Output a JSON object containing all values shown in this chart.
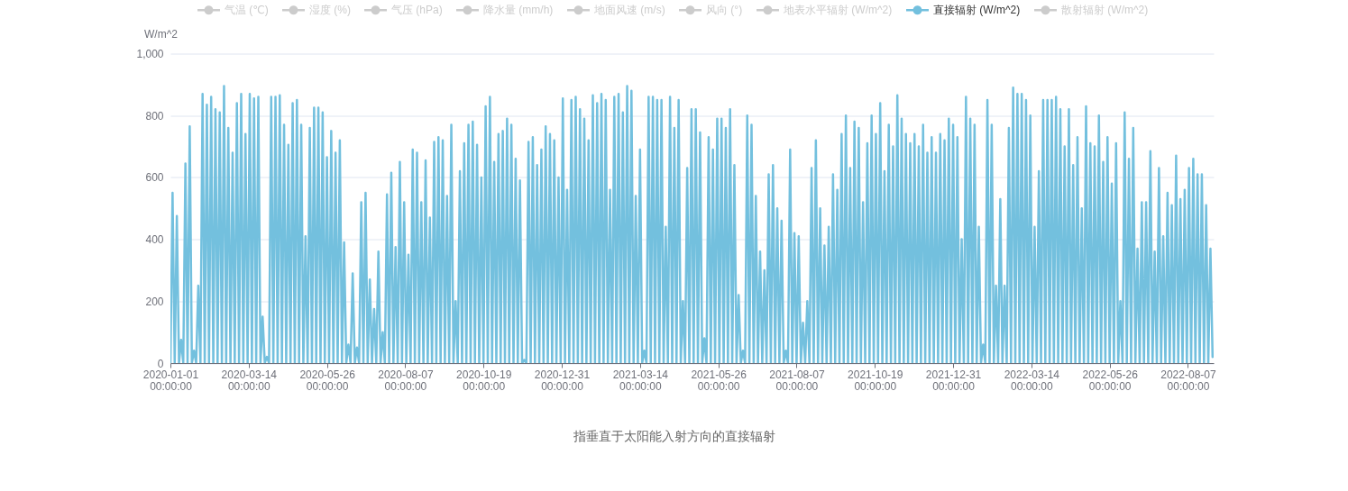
{
  "chart_data": {
    "type": "line",
    "ylabel": "W/m^2",
    "annotations": [
      "指垂直于太阳能入射方向的直接辐射"
    ],
    "legend": "top",
    "grid": "y",
    "xlim": [
      "2020-01-01",
      "2022-08-31"
    ],
    "xticks": [
      {
        "value": "2020-01-01",
        "label": "2020-01-01\n00:00:00"
      },
      {
        "value": "2020-03-14",
        "label": "2020-03-14\n00:00:00"
      },
      {
        "value": "2020-05-26",
        "label": "2020-05-26\n00:00:00"
      },
      {
        "value": "2020-08-07",
        "label": "2020-08-07\n00:00:00"
      },
      {
        "value": "2020-10-19",
        "label": "2020-10-19\n00:00:00"
      },
      {
        "value": "2020-12-31",
        "label": "2020-12-31\n00:00:00"
      },
      {
        "value": "2021-03-14",
        "label": "2021-03-14\n00:00:00"
      },
      {
        "value": "2021-05-26",
        "label": "2021-05-26\n00:00:00"
      },
      {
        "value": "2021-08-07",
        "label": "2021-08-07\n00:00:00"
      },
      {
        "value": "2021-10-19",
        "label": "2021-10-19\n00:00:00"
      },
      {
        "value": "2021-12-31",
        "label": "2021-12-31\n00:00:00"
      },
      {
        "value": "2022-03-14",
        "label": "2022-03-14\n00:00:00"
      },
      {
        "value": "2022-05-26",
        "label": "2022-05-26\n00:00:00"
      },
      {
        "value": "2022-08-07",
        "label": "2022-08-07\n00:00:00"
      }
    ],
    "ylim": [
      0,
      1000
    ],
    "yticks": [
      0,
      200,
      400,
      600,
      800,
      {
        "value": 1000,
        "label": "1,000"
      }
    ],
    "series": [
      {
        "name": "气温 (℃)",
        "color": "#cccccc"
      },
      {
        "name": "湿度 (%)",
        "color": "#cccccc"
      },
      {
        "name": "气压 (hPa)",
        "color": "#cccccc"
      },
      {
        "name": "降水量 (mm/h)",
        "color": "#cccccc"
      },
      {
        "name": "地面风速 (m/s)",
        "color": "#cccccc"
      },
      {
        "name": "风向 (°)",
        "color": "#cccccc"
      },
      {
        "name": "地表水平辐射 (W/m^2)",
        "color": "#cccccc"
      },
      {
        "name": "直接辐射 (W/m^2)",
        "color": "#73c0de",
        "x": [
          "2020-01-01",
          "2020-01-03",
          "2020-01-05",
          "2020-01-07",
          "2020-01-09",
          "2020-01-11",
          "2020-01-13",
          "2020-01-15",
          "2020-01-17",
          "2020-01-19",
          "2020-01-21",
          "2020-01-23",
          "2020-01-25",
          "2020-01-27",
          "2020-01-29",
          "2020-01-31",
          "2020-02-02",
          "2020-02-04",
          "2020-02-06",
          "2020-02-08",
          "2020-02-10",
          "2020-02-12",
          "2020-02-14",
          "2020-02-16",
          "2020-02-18",
          "2020-02-20",
          "2020-02-22",
          "2020-02-24",
          "2020-02-26",
          "2020-02-28",
          "2020-03-01",
          "2020-03-03",
          "2020-03-05",
          "2020-03-07",
          "2020-03-09",
          "2020-03-11",
          "2020-03-13",
          "2020-03-15",
          "2020-03-17",
          "2020-03-19",
          "2020-03-21",
          "2020-03-23",
          "2020-03-25",
          "2020-03-27",
          "2020-03-29",
          "2020-03-31",
          "2020-04-02",
          "2020-04-04",
          "2020-04-06",
          "2020-04-08",
          "2020-04-10",
          "2020-04-12",
          "2020-04-14",
          "2020-04-16",
          "2020-04-18",
          "2020-04-20",
          "2020-04-22",
          "2020-04-24",
          "2020-04-26",
          "2020-04-28",
          "2020-04-30",
          "2020-05-02",
          "2020-05-04",
          "2020-05-06",
          "2020-05-08",
          "2020-05-10",
          "2020-05-12",
          "2020-05-14",
          "2020-05-16",
          "2020-05-18",
          "2020-05-20",
          "2020-05-22",
          "2020-05-24",
          "2020-05-26",
          "2020-05-28",
          "2020-05-30",
          "2020-06-01",
          "2020-06-03",
          "2020-06-05",
          "2020-06-07",
          "2020-06-09",
          "2020-06-11",
          "2020-06-13",
          "2020-06-15",
          "2020-06-17",
          "2020-06-19",
          "2020-06-21",
          "2020-06-23",
          "2020-06-25",
          "2020-06-27",
          "2020-06-29",
          "2020-07-01",
          "2020-07-03",
          "2020-07-05",
          "2020-07-07",
          "2020-07-09",
          "2020-07-11",
          "2020-07-13",
          "2020-07-15",
          "2020-07-17",
          "2020-07-19",
          "2020-07-21",
          "2020-07-23",
          "2020-07-25",
          "2020-07-27",
          "2020-07-29",
          "2020-07-31",
          "2020-08-02",
          "2020-08-04",
          "2020-08-06",
          "2020-08-08",
          "2020-08-10",
          "2020-08-12",
          "2020-08-14",
          "2020-08-16",
          "2020-08-18",
          "2020-08-20",
          "2020-08-22",
          "2020-08-24",
          "2020-08-26",
          "2020-08-28",
          "2020-08-30",
          "2020-09-01",
          "2020-09-03",
          "2020-09-05",
          "2020-09-07",
          "2020-09-09",
          "2020-09-11",
          "2020-09-13",
          "2020-09-15",
          "2020-09-17",
          "2020-09-19",
          "2020-09-21",
          "2020-09-23",
          "2020-09-25",
          "2020-09-27",
          "2020-09-29",
          "2020-10-01",
          "2020-10-03",
          "2020-10-05",
          "2020-10-07",
          "2020-10-09",
          "2020-10-11",
          "2020-10-13",
          "2020-10-15",
          "2020-10-17",
          "2020-10-19",
          "2020-10-21",
          "2020-10-23",
          "2020-10-25",
          "2020-10-27",
          "2020-10-29",
          "2020-10-31",
          "2020-11-02",
          "2020-11-04",
          "2020-11-06",
          "2020-11-08",
          "2020-11-10",
          "2020-11-12",
          "2020-11-14",
          "2020-11-16",
          "2020-11-18",
          "2020-11-20",
          "2020-11-22",
          "2020-11-24",
          "2020-11-26",
          "2020-11-28",
          "2020-11-30",
          "2020-12-02",
          "2020-12-04",
          "2020-12-06",
          "2020-12-08",
          "2020-12-10",
          "2020-12-12",
          "2020-12-14",
          "2020-12-16",
          "2020-12-18",
          "2020-12-20",
          "2020-12-22",
          "2020-12-24",
          "2020-12-26",
          "2020-12-28",
          "2020-12-30",
          "2021-01-01",
          "2021-01-03",
          "2021-01-05",
          "2021-01-07",
          "2021-01-09",
          "2021-01-11",
          "2021-01-13",
          "2021-01-15",
          "2021-01-17",
          "2021-01-19",
          "2021-01-21",
          "2021-01-23",
          "2021-01-25",
          "2021-01-27",
          "2021-01-29",
          "2021-01-31",
          "2021-02-02",
          "2021-02-04",
          "2021-02-06",
          "2021-02-08",
          "2021-02-10",
          "2021-02-12",
          "2021-02-14",
          "2021-02-16",
          "2021-02-18",
          "2021-02-20",
          "2021-02-22",
          "2021-02-24",
          "2021-02-26",
          "2021-02-28",
          "2021-03-02",
          "2021-03-04",
          "2021-03-06",
          "2021-03-08",
          "2021-03-10",
          "2021-03-12",
          "2021-03-14",
          "2021-03-16",
          "2021-03-18",
          "2021-03-20",
          "2021-03-22",
          "2021-03-24",
          "2021-03-26",
          "2021-03-28",
          "2021-03-30",
          "2021-04-01",
          "2021-04-03",
          "2021-04-05",
          "2021-04-07",
          "2021-04-09",
          "2021-04-11",
          "2021-04-13",
          "2021-04-15",
          "2021-04-17",
          "2021-04-19",
          "2021-04-21",
          "2021-04-23",
          "2021-04-25",
          "2021-04-27",
          "2021-04-29",
          "2021-05-01",
          "2021-05-03",
          "2021-05-05",
          "2021-05-07",
          "2021-05-09",
          "2021-05-11",
          "2021-05-13",
          "2021-05-15",
          "2021-05-17",
          "2021-05-19",
          "2021-05-21",
          "2021-05-23",
          "2021-05-25",
          "2021-05-27",
          "2021-05-29",
          "2021-05-31",
          "2021-06-02",
          "2021-06-04",
          "2021-06-06",
          "2021-06-08",
          "2021-06-10",
          "2021-06-12",
          "2021-06-14",
          "2021-06-16",
          "2021-06-18",
          "2021-06-20",
          "2021-06-22",
          "2021-06-24",
          "2021-06-26",
          "2021-06-28",
          "2021-06-30",
          "2021-07-02",
          "2021-07-04",
          "2021-07-06",
          "2021-07-08",
          "2021-07-10",
          "2021-07-12",
          "2021-07-14",
          "2021-07-16",
          "2021-07-18",
          "2021-07-20",
          "2021-07-22",
          "2021-07-24",
          "2021-07-26",
          "2021-07-28",
          "2021-07-30",
          "2021-08-01",
          "2021-08-03",
          "2021-08-05",
          "2021-08-07",
          "2021-08-09",
          "2021-08-11",
          "2021-08-13",
          "2021-08-15",
          "2021-08-17",
          "2021-08-19",
          "2021-08-21",
          "2021-08-23",
          "2021-08-25",
          "2021-08-27",
          "2021-08-29",
          "2021-08-31",
          "2021-09-02",
          "2021-09-04",
          "2021-09-06",
          "2021-09-08",
          "2021-09-10",
          "2021-09-12",
          "2021-09-14",
          "2021-09-16",
          "2021-09-18",
          "2021-09-20",
          "2021-09-22",
          "2021-09-24",
          "2021-09-26",
          "2021-09-28",
          "2021-09-30",
          "2021-10-02",
          "2021-10-04",
          "2021-10-06",
          "2021-10-08",
          "2021-10-10",
          "2021-10-12",
          "2021-10-14",
          "2021-10-16",
          "2021-10-18",
          "2021-10-20",
          "2021-10-22",
          "2021-10-24",
          "2021-10-26",
          "2021-10-28",
          "2021-10-30",
          "2021-11-01",
          "2021-11-03",
          "2021-11-05",
          "2021-11-07",
          "2021-11-09",
          "2021-11-11",
          "2021-11-13",
          "2021-11-15",
          "2021-11-17",
          "2021-11-19",
          "2021-11-21",
          "2021-11-23",
          "2021-11-25",
          "2021-11-27",
          "2021-11-29",
          "2021-12-01",
          "2021-12-03",
          "2021-12-05",
          "2021-12-07",
          "2021-12-09",
          "2021-12-11",
          "2021-12-13",
          "2021-12-15",
          "2021-12-17",
          "2021-12-19",
          "2021-12-21",
          "2021-12-23",
          "2021-12-25",
          "2021-12-27",
          "2021-12-29",
          "2021-12-31",
          "2022-01-02",
          "2022-01-04",
          "2022-01-06",
          "2022-01-08",
          "2022-01-10",
          "2022-01-12",
          "2022-01-14",
          "2022-01-16",
          "2022-01-18",
          "2022-01-20",
          "2022-01-22",
          "2022-01-24",
          "2022-01-26",
          "2022-01-28",
          "2022-01-30",
          "2022-02-01",
          "2022-02-03",
          "2022-02-05",
          "2022-02-07",
          "2022-02-09",
          "2022-02-11",
          "2022-02-13",
          "2022-02-15",
          "2022-02-17",
          "2022-02-19",
          "2022-02-21",
          "2022-02-23",
          "2022-02-25",
          "2022-02-27",
          "2022-03-01",
          "2022-03-03",
          "2022-03-05",
          "2022-03-07",
          "2022-03-09",
          "2022-03-11",
          "2022-03-13",
          "2022-03-15",
          "2022-03-17",
          "2022-03-19",
          "2022-03-21",
          "2022-03-23",
          "2022-03-25",
          "2022-03-27",
          "2022-03-29",
          "2022-03-31",
          "2022-04-02",
          "2022-04-04",
          "2022-04-06",
          "2022-04-08",
          "2022-04-10",
          "2022-04-12",
          "2022-04-14",
          "2022-04-16",
          "2022-04-18",
          "2022-04-20",
          "2022-04-22",
          "2022-04-24",
          "2022-04-26",
          "2022-04-28",
          "2022-04-30",
          "2022-05-02",
          "2022-05-04",
          "2022-05-06",
          "2022-05-08",
          "2022-05-10",
          "2022-05-12",
          "2022-05-14",
          "2022-05-16",
          "2022-05-18",
          "2022-05-20",
          "2022-05-22",
          "2022-05-24",
          "2022-05-26",
          "2022-05-28",
          "2022-05-30",
          "2022-06-01",
          "2022-06-03",
          "2022-06-05",
          "2022-06-07",
          "2022-06-09",
          "2022-06-11",
          "2022-06-13",
          "2022-06-15",
          "2022-06-17",
          "2022-06-19",
          "2022-06-21",
          "2022-06-23",
          "2022-06-25",
          "2022-06-27",
          "2022-06-29",
          "2022-07-01",
          "2022-07-03",
          "2022-07-05",
          "2022-07-07",
          "2022-07-09",
          "2022-07-11",
          "2022-07-13",
          "2022-07-15",
          "2022-07-17",
          "2022-07-19",
          "2022-07-21",
          "2022-07-23",
          "2022-07-25",
          "2022-07-27",
          "2022-07-29",
          "2022-07-31",
          "2022-08-02",
          "2022-08-04",
          "2022-08-06",
          "2022-08-08",
          "2022-08-10",
          "2022-08-12",
          "2022-08-14",
          "2022-08-16",
          "2022-08-18",
          "2022-08-20",
          "2022-08-22",
          "2022-08-24",
          "2022-08-26",
          "2022-08-28",
          "2022-08-30"
        ],
        "values": [
          0,
          550,
          0,
          475,
          0,
          75,
          0,
          645,
          0,
          765,
          0,
          40,
          0,
          250,
          0,
          870,
          0,
          835,
          0,
          860,
          0,
          820,
          0,
          810,
          0,
          895,
          0,
          760,
          0,
          680,
          0,
          840,
          0,
          870,
          0,
          740,
          0,
          870,
          0,
          855,
          0,
          860,
          0,
          150,
          0,
          20,
          0,
          860,
          0,
          860,
          0,
          865,
          0,
          770,
          0,
          705,
          0,
          840,
          0,
          850,
          0,
          770,
          0,
          410,
          0,
          760,
          0,
          825,
          0,
          825,
          0,
          810,
          0,
          665,
          0,
          750,
          0,
          680,
          0,
          720,
          0,
          390,
          0,
          60,
          0,
          290,
          0,
          50,
          0,
          520,
          0,
          550,
          0,
          270,
          0,
          175,
          0,
          360,
          0,
          100,
          0,
          545,
          0,
          615,
          0,
          375,
          0,
          650,
          0,
          520,
          0,
          350,
          0,
          690,
          0,
          680,
          0,
          520,
          0,
          655,
          0,
          470,
          0,
          715,
          0,
          730,
          0,
          720,
          0,
          540,
          0,
          770,
          0,
          200,
          0,
          620,
          0,
          710,
          0,
          770,
          0,
          780,
          0,
          705,
          0,
          600,
          0,
          830,
          0,
          860,
          0,
          650,
          0,
          740,
          0,
          750,
          0,
          790,
          0,
          770,
          0,
          660,
          0,
          590,
          0,
          10,
          0,
          715,
          0,
          730,
          0,
          640,
          0,
          690,
          0,
          765,
          0,
          740,
          0,
          720,
          0,
          600,
          0,
          855,
          0,
          560,
          0,
          850,
          0,
          860,
          0,
          820,
          0,
          790,
          0,
          720,
          0,
          865,
          0,
          840,
          0,
          870,
          0,
          850,
          0,
          560,
          0,
          860,
          0,
          870,
          0,
          810,
          0,
          895,
          0,
          880,
          0,
          540,
          0,
          690,
          0,
          40,
          0,
          860,
          0,
          860,
          0,
          850,
          0,
          850,
          0,
          440,
          0,
          860,
          0,
          760,
          0,
          850,
          0,
          200,
          0,
          630,
          0,
          820,
          0,
          820,
          0,
          745,
          0,
          80,
          0,
          730,
          0,
          690,
          0,
          790,
          0,
          790,
          0,
          760,
          0,
          820,
          0,
          640,
          0,
          220,
          0,
          40,
          0,
          800,
          0,
          770,
          0,
          540,
          0,
          360,
          0,
          300,
          0,
          610,
          0,
          640,
          0,
          500,
          0,
          460,
          0,
          40,
          0,
          690,
          0,
          420,
          0,
          410,
          0,
          130,
          0,
          200,
          0,
          630,
          0,
          720,
          0,
          500,
          0,
          380,
          0,
          440,
          0,
          610,
          0,
          560,
          0,
          740,
          0,
          800,
          0,
          630,
          0,
          780,
          0,
          760,
          0,
          520,
          0,
          710,
          0,
          800,
          0,
          740,
          0,
          840,
          0,
          620,
          0,
          770,
          0,
          700,
          0,
          865,
          0,
          790,
          0,
          740,
          0,
          710,
          0,
          740,
          0,
          700,
          0,
          770,
          0,
          680,
          0,
          730,
          0,
          680,
          0,
          740,
          0,
          720,
          0,
          790,
          0,
          770,
          0,
          730,
          0,
          400,
          0,
          860,
          0,
          790,
          0,
          770,
          0,
          440,
          0,
          60,
          0,
          850,
          0,
          770,
          0,
          250,
          0,
          530,
          0,
          250,
          0,
          760,
          0,
          890,
          0,
          870,
          0,
          870,
          0,
          850,
          0,
          800,
          0,
          440,
          0,
          620,
          0,
          850,
          0,
          850,
          0,
          850,
          0,
          860,
          0,
          820,
          0,
          700,
          0,
          820,
          0,
          640,
          0,
          730,
          0,
          500,
          0,
          830,
          0,
          710,
          0,
          700,
          0,
          800,
          0,
          650,
          0,
          730,
          0,
          580,
          0,
          710,
          0,
          200,
          0,
          810,
          0,
          660,
          0,
          760,
          0,
          370,
          0,
          520,
          0,
          520,
          0,
          685,
          0,
          360,
          0,
          630,
          0,
          410,
          0,
          550,
          0,
          510,
          0,
          670,
          0,
          530,
          0,
          560,
          0,
          630,
          0,
          660,
          0,
          610,
          0,
          610,
          0,
          510,
          0,
          370,
          20
        ]
      },
      {
        "name": "散射辐射 (W/m^2)",
        "color": "#cccccc"
      }
    ]
  }
}
